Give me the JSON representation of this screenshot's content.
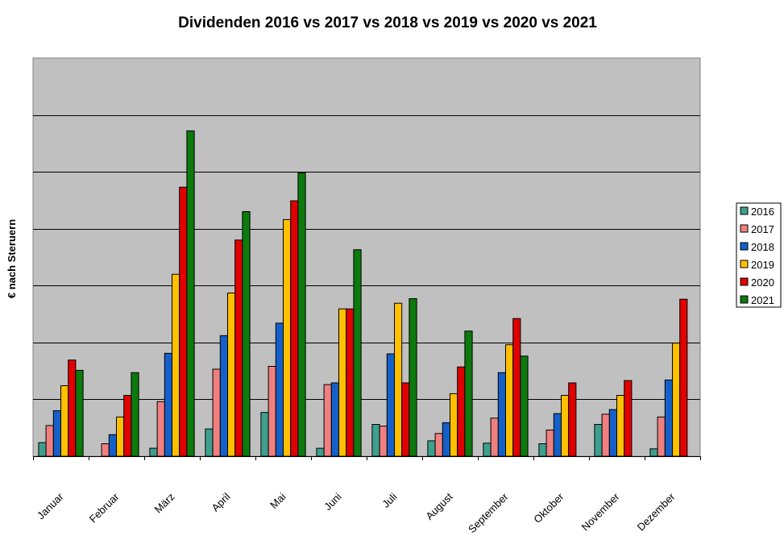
{
  "chart_data": {
    "type": "bar",
    "title": "Dividenden 2016 vs 2017 vs 2018 vs 2019 vs 2020 vs 2021",
    "xlabel": "",
    "ylabel": "€ nach Steruern",
    "ylim": [
      0,
      70
    ],
    "y_gridline_step": 10,
    "y_tick_labels_shown": false,
    "grid": true,
    "legend_position": "right",
    "plot_background": "#c0c0c0",
    "categories": [
      "Januar",
      "Februar",
      "März",
      "April",
      "Mai",
      "Juni",
      "Juli",
      "August",
      "September",
      "Oktober",
      "November",
      "Dezember"
    ],
    "series": [
      {
        "name": "2016",
        "color": "#3f9f8f",
        "values": [
          2.4,
          0,
          1.4,
          4.8,
          7.7,
          1.4,
          5.6,
          2.7,
          2.3,
          2.2,
          5.6,
          1.3
        ]
      },
      {
        "name": "2017",
        "color": "#f08080",
        "values": [
          5.4,
          2.2,
          9.6,
          15.3,
          15.8,
          12.6,
          5.3,
          4.0,
          6.7,
          4.6,
          7.4,
          6.9
        ]
      },
      {
        "name": "2018",
        "color": "#1560c8",
        "values": [
          8.0,
          3.8,
          18.1,
          21.2,
          23.4,
          12.9,
          18.0,
          5.9,
          14.7,
          7.5,
          8.2,
          13.4
        ]
      },
      {
        "name": "2019",
        "color": "#ffc000",
        "values": [
          12.4,
          6.9,
          32.0,
          28.7,
          41.6,
          25.9,
          26.9,
          11.0,
          19.6,
          10.7,
          10.7,
          19.9
        ]
      },
      {
        "name": "2020",
        "color": "#e00000",
        "values": [
          16.9,
          10.7,
          47.3,
          38.0,
          44.9,
          25.9,
          12.9,
          15.7,
          24.2,
          12.9,
          13.3,
          27.6
        ]
      },
      {
        "name": "2021",
        "color": "#0c7a0c",
        "values": [
          15.1,
          14.7,
          57.2,
          43.0,
          49.8,
          36.3,
          27.7,
          22.0,
          17.6,
          0,
          0,
          0
        ]
      }
    ]
  }
}
